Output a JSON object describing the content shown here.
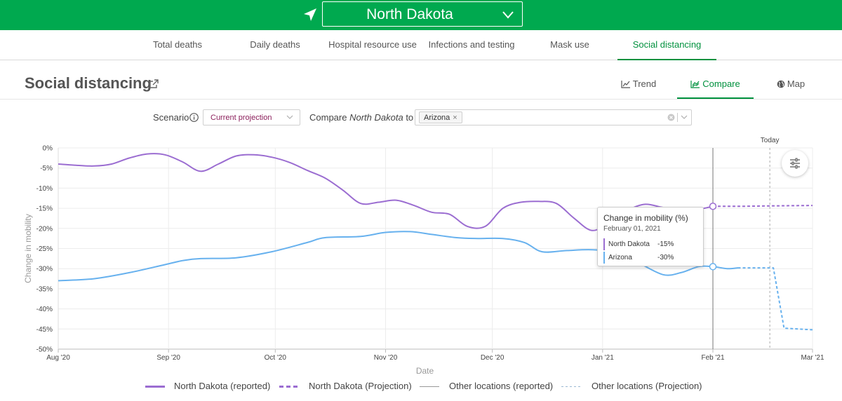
{
  "header": {
    "location": "North Dakota",
    "location_icon": "navigation-arrow-icon",
    "dropdown_icon": "chevron-down-icon"
  },
  "tabs": [
    {
      "label": "Total deaths",
      "active": false
    },
    {
      "label": "Daily deaths",
      "active": false
    },
    {
      "label": "Hospital resource use",
      "active": false
    },
    {
      "label": "Infections and testing",
      "active": false
    },
    {
      "label": "Mask use",
      "active": false
    },
    {
      "label": "Social distancing",
      "active": true
    }
  ],
  "section": {
    "title": "Social distancing",
    "views": [
      {
        "label": "Trend",
        "icon": "line-chart-icon",
        "active": false
      },
      {
        "label": "Compare",
        "icon": "compare-chart-icon",
        "active": true
      },
      {
        "label": "Map",
        "icon": "globe-icon",
        "active": false
      }
    ]
  },
  "controls": {
    "scenario_label": "Scenario",
    "scenario_value": "Current projection",
    "compare_prefix": "Compare",
    "compare_location": "North Dakota",
    "compare_suffix": "to",
    "compare_tags": [
      "Arizona"
    ]
  },
  "colors": {
    "brand_green": "#00a94f",
    "active_tab": "#00913e",
    "north_dakota": "#9b6dd1",
    "arizona": "#67b1ee",
    "scenario_text": "#8b1f5b"
  },
  "chart_data": {
    "type": "line",
    "xlabel": "Date",
    "ylabel": "Change in mobility",
    "x_ticks": [
      "Aug '20",
      "Sep '20",
      "Oct '20",
      "Nov '20",
      "Dec '20",
      "Jan '21",
      "Feb '21",
      "Mar '21"
    ],
    "y_ticks": [
      "0%",
      "-5%",
      "-10%",
      "-15%",
      "-20%",
      "-25%",
      "-30%",
      "-35%",
      "-40%",
      "-45%",
      "-50%"
    ],
    "ylim": [
      -50,
      0
    ],
    "xlim": [
      "2020-08-01",
      "2021-03-01"
    ],
    "grid": true,
    "today_label": "Today",
    "today_date": "2021-02-17",
    "series": [
      {
        "name": "North Dakota (reported)",
        "color": "#9b6dd1",
        "style": "solid",
        "points": [
          [
            "2020-08-01",
            -4.0
          ],
          [
            "2020-08-06",
            -4.3
          ],
          [
            "2020-08-11",
            -4.5
          ],
          [
            "2020-08-16",
            -4.0
          ],
          [
            "2020-08-21",
            -2.5
          ],
          [
            "2020-08-26",
            -1.5
          ],
          [
            "2020-08-31",
            -1.7
          ],
          [
            "2020-09-05",
            -3.5
          ],
          [
            "2020-09-10",
            -5.8
          ],
          [
            "2020-09-15",
            -4.0
          ],
          [
            "2020-09-20",
            -2.0
          ],
          [
            "2020-09-25",
            -1.7
          ],
          [
            "2020-09-30",
            -2.3
          ],
          [
            "2020-10-05",
            -3.6
          ],
          [
            "2020-10-10",
            -5.6
          ],
          [
            "2020-10-15",
            -7.5
          ],
          [
            "2020-10-20",
            -10.5
          ],
          [
            "2020-10-25",
            -13.8
          ],
          [
            "2020-10-30",
            -13.5
          ],
          [
            "2020-11-04",
            -13.0
          ],
          [
            "2020-11-09",
            -14.3
          ],
          [
            "2020-11-14",
            -16.0
          ],
          [
            "2020-11-19",
            -16.5
          ],
          [
            "2020-11-24",
            -19.5
          ],
          [
            "2020-11-29",
            -19.5
          ],
          [
            "2020-12-04",
            -15.0
          ],
          [
            "2020-12-09",
            -13.5
          ],
          [
            "2020-12-14",
            -13.3
          ],
          [
            "2020-12-19",
            -13.8
          ],
          [
            "2020-12-24",
            -17.5
          ],
          [
            "2020-12-29",
            -20.5
          ],
          [
            "2021-01-03",
            -18.5
          ],
          [
            "2021-01-08",
            -15.5
          ],
          [
            "2021-01-13",
            -14.0
          ],
          [
            "2021-01-18",
            -14.8
          ],
          [
            "2021-01-23",
            -15.0
          ],
          [
            "2021-01-28",
            -15.2
          ],
          [
            "2021-02-01",
            -14.5
          ]
        ]
      },
      {
        "name": "North Dakota (Projection)",
        "color": "#9b6dd1",
        "style": "dashed",
        "points": [
          [
            "2021-02-01",
            -14.5
          ],
          [
            "2021-02-10",
            -14.5
          ],
          [
            "2021-02-17",
            -14.4
          ],
          [
            "2021-03-01",
            -14.3
          ]
        ]
      },
      {
        "name": "Arizona (reported)",
        "color": "#67b1ee",
        "style": "solid",
        "points": [
          [
            "2020-08-01",
            -33.0
          ],
          [
            "2020-08-11",
            -32.5
          ],
          [
            "2020-08-21",
            -31.0
          ],
          [
            "2020-08-31",
            -29.0
          ],
          [
            "2020-09-05",
            -28.0
          ],
          [
            "2020-09-10",
            -27.5
          ],
          [
            "2020-09-20",
            -27.3
          ],
          [
            "2020-09-30",
            -25.8
          ],
          [
            "2020-10-10",
            -23.5
          ],
          [
            "2020-10-15",
            -22.3
          ],
          [
            "2020-10-25",
            -22.0
          ],
          [
            "2020-11-01",
            -21.0
          ],
          [
            "2020-11-08",
            -20.8
          ],
          [
            "2020-11-14",
            -21.5
          ],
          [
            "2020-11-21",
            -22.3
          ],
          [
            "2020-11-27",
            -22.5
          ],
          [
            "2020-12-04",
            -22.5
          ],
          [
            "2020-12-10",
            -23.5
          ],
          [
            "2020-12-15",
            -25.8
          ],
          [
            "2020-12-22",
            -25.5
          ],
          [
            "2020-12-29",
            -25.3
          ],
          [
            "2021-01-05",
            -26.0
          ],
          [
            "2021-01-11",
            -28.5
          ],
          [
            "2021-01-18",
            -31.5
          ],
          [
            "2021-01-23",
            -31.0
          ],
          [
            "2021-01-28",
            -29.5
          ],
          [
            "2021-02-01",
            -29.5
          ],
          [
            "2021-02-05",
            -30.0
          ],
          [
            "2021-02-08",
            -29.8
          ]
        ]
      },
      {
        "name": "Arizona (Projection)",
        "color": "#67b1ee",
        "style": "dashed",
        "points": [
          [
            "2021-02-08",
            -29.8
          ],
          [
            "2021-02-18",
            -29.8
          ],
          [
            "2021-02-21",
            -44.8
          ],
          [
            "2021-03-01",
            -45.2
          ]
        ]
      }
    ],
    "tooltip": {
      "title": "Change in mobility (%)",
      "date": "February 01, 2021",
      "rows": [
        {
          "name": "North Dakota",
          "value": "-15%",
          "color": "#9b6dd1"
        },
        {
          "name": "Arizona",
          "value": "-30%",
          "color": "#67b1ee"
        }
      ]
    }
  },
  "legend": [
    {
      "label": "North Dakota (reported)",
      "style": "solid",
      "color": "#9b6dd1"
    },
    {
      "label": "North Dakota (Projection)",
      "style": "dashed",
      "color": "#9b6dd1"
    },
    {
      "label": "Other locations (reported)",
      "style": "solid",
      "color": "#999999"
    },
    {
      "label": "Other locations (Projection)",
      "style": "dashed",
      "color": "#9bb8d3"
    }
  ]
}
